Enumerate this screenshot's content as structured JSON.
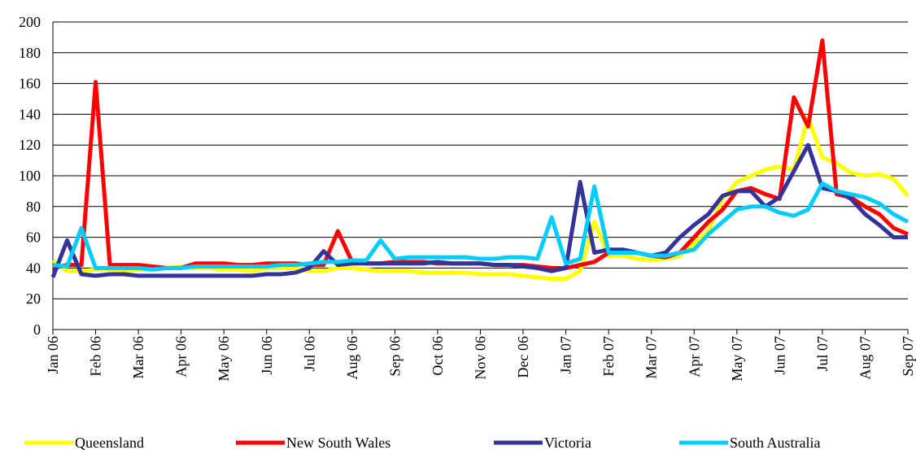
{
  "chart_data": {
    "type": "line",
    "categories": [
      "Jan 06",
      null,
      null,
      "Feb 06",
      null,
      null,
      "Mar 06",
      null,
      null,
      "Apr 06",
      null,
      null,
      "May 06",
      null,
      null,
      "Jun 06",
      null,
      null,
      "Jul 06",
      null,
      null,
      "Aug 06",
      null,
      null,
      "Sep 06",
      null,
      null,
      "Oct 06",
      null,
      null,
      "Nov 06",
      null,
      null,
      "Dec 06",
      null,
      null,
      "Jan 07",
      null,
      null,
      "Feb 07",
      null,
      null,
      "Mar 07",
      null,
      null,
      "Apr 07",
      null,
      null,
      "May 07",
      null,
      null,
      "Jun 07",
      null,
      null,
      "Jul 07",
      null,
      null,
      "Aug 07",
      null,
      null,
      "Sep 07"
    ],
    "series": [
      {
        "name": "Queensland",
        "color": "#ffff00",
        "values": [
          45,
          38,
          38,
          39,
          39,
          38,
          39,
          39,
          40,
          41,
          40,
          40,
          39,
          39,
          38,
          40,
          40,
          40,
          38,
          38,
          40,
          40,
          39,
          38,
          38,
          38,
          37,
          37,
          37,
          37,
          36,
          36,
          36,
          35,
          34,
          33,
          33,
          38,
          70,
          48,
          48,
          46,
          45,
          46,
          48,
          56,
          64,
          85,
          96,
          100,
          104,
          106,
          104,
          138,
          112,
          108,
          102,
          100,
          101,
          98,
          87
        ]
      },
      {
        "name": "New South Wales",
        "color": "#ff0000",
        "values": [
          40,
          42,
          42,
          161,
          42,
          42,
          42,
          41,
          40,
          40,
          43,
          43,
          43,
          42,
          42,
          43,
          43,
          43,
          42,
          42,
          64,
          44,
          43,
          43,
          44,
          44,
          44,
          43,
          43,
          43,
          43,
          42,
          42,
          42,
          41,
          40,
          40,
          42,
          44,
          50,
          50,
          50,
          48,
          47,
          50,
          60,
          70,
          78,
          90,
          92,
          88,
          85,
          151,
          132,
          188,
          88,
          86,
          80,
          75,
          66,
          62
        ]
      },
      {
        "name": "Victoria",
        "color": "#333399",
        "values": [
          34,
          58,
          36,
          35,
          36,
          36,
          35,
          35,
          35,
          35,
          35,
          35,
          35,
          35,
          35,
          36,
          36,
          37,
          40,
          51,
          42,
          43,
          43,
          43,
          43,
          43,
          43,
          44,
          43,
          43,
          43,
          42,
          42,
          41,
          40,
          38,
          40,
          96,
          50,
          52,
          52,
          50,
          48,
          50,
          60,
          68,
          75,
          87,
          90,
          90,
          80,
          86,
          103,
          120,
          92,
          90,
          85,
          75,
          68,
          60,
          60
        ]
      },
      {
        "name": "South Australia",
        "color": "#00ccff",
        "values": [
          42,
          41,
          66,
          40,
          40,
          40,
          40,
          39,
          40,
          40,
          41,
          41,
          41,
          41,
          41,
          41,
          42,
          42,
          43,
          44,
          44,
          45,
          45,
          58,
          46,
          47,
          47,
          47,
          47,
          47,
          46,
          46,
          47,
          47,
          46,
          73,
          43,
          46,
          93,
          50,
          50,
          50,
          48,
          48,
          50,
          52,
          62,
          70,
          78,
          80,
          80,
          76,
          74,
          78,
          95,
          90,
          88,
          86,
          82,
          75,
          70
        ]
      }
    ],
    "ylim": [
      0,
      200
    ],
    "yticks": [
      0,
      20,
      40,
      60,
      80,
      100,
      120,
      140,
      160,
      180,
      200
    ],
    "grid": true
  }
}
